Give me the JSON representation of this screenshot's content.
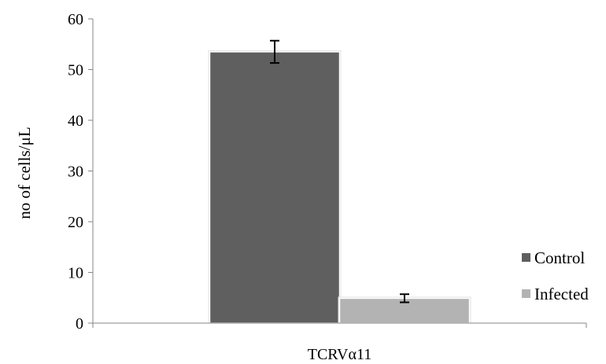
{
  "chart_data": {
    "type": "bar",
    "categories": [
      "TCRVα11"
    ],
    "series": [
      {
        "name": "Control",
        "values": [
          53.5
        ],
        "error": [
          2.2
        ],
        "color": "#5f5f5f"
      },
      {
        "name": "Infected",
        "values": [
          4.9
        ],
        "error": [
          0.8
        ],
        "color": "#b3b3b3"
      }
    ],
    "xlabel": "",
    "ylabel": "no of cells/μL",
    "ylim": [
      0,
      60
    ],
    "yticks": [
      0,
      10,
      20,
      30,
      40,
      50,
      60
    ],
    "grid": false,
    "legend": "right"
  }
}
